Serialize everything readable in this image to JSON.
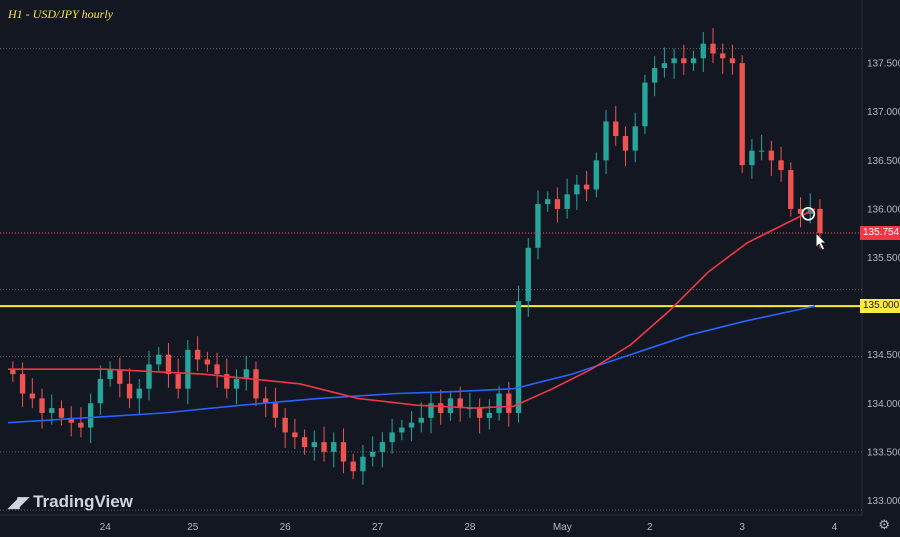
{
  "title": "H1 - USD/JPY hourly",
  "brand": "TradingView",
  "brand_logo": "TV-logo-icon",
  "settings_icon": "gear-icon",
  "colors": {
    "background": "#131722",
    "up": "#26a69a",
    "down": "#ef5350",
    "ma_red": "#f23645",
    "ma_blue": "#2962ff",
    "level": "#ffeb3b",
    "current": "#f23645"
  },
  "chart_data": {
    "type": "candlestick",
    "title": "H1 - USD/JPY hourly",
    "ylim": [
      132.85,
      138.15
    ],
    "yticks": [
      133.0,
      133.5,
      134.0,
      134.5,
      135.0,
      135.5,
      136.0,
      136.5,
      137.0,
      137.5
    ],
    "ytick_labels": [
      "133.000",
      "133.500",
      "134.000",
      "134.500",
      "135.000",
      "135.500",
      "136.000",
      "136.500",
      "137.000",
      "137.500"
    ],
    "xlim": [
      0,
      87
    ],
    "xticks": [
      10,
      19,
      28.5,
      38,
      47.5,
      57,
      66,
      75.5,
      85
    ],
    "xtick_labels": [
      "24",
      "25",
      "26",
      "27",
      "28",
      "May",
      "2",
      "3",
      "4"
    ],
    "horizontal_level": {
      "value": 135.0,
      "label": "135.000"
    },
    "current_price": {
      "value": 135.754,
      "label": "135.754"
    },
    "dotted_levels": [
      137.65,
      135.75,
      135.17,
      134.48,
      133.5,
      132.9
    ],
    "close": [
      134.3,
      134.1,
      134.05,
      133.9,
      133.95,
      133.85,
      133.8,
      133.75,
      134.0,
      134.25,
      134.35,
      134.2,
      134.05,
      134.15,
      134.4,
      134.5,
      134.3,
      134.15,
      134.55,
      134.45,
      134.4,
      134.3,
      134.15,
      134.25,
      134.35,
      134.05,
      134.0,
      133.85,
      133.7,
      133.65,
      133.55,
      133.6,
      133.5,
      133.6,
      133.4,
      133.3,
      133.45,
      133.5,
      133.6,
      133.7,
      133.75,
      133.8,
      133.85,
      134.0,
      133.9,
      134.05,
      133.95,
      133.95,
      133.85,
      133.9,
      134.1,
      133.9,
      135.05,
      135.6,
      136.05,
      136.1,
      136.0,
      136.15,
      136.25,
      136.2,
      136.5,
      136.9,
      136.75,
      136.6,
      136.85,
      137.3,
      137.45,
      137.5,
      137.55,
      137.5,
      137.55,
      137.7,
      137.6,
      137.55,
      137.5,
      136.45,
      136.6,
      136.6,
      136.5,
      136.4,
      136.0,
      135.95,
      136.0,
      135.75
    ],
    "ma_red": [
      [
        0,
        134.35
      ],
      [
        10,
        134.35
      ],
      [
        20,
        134.3
      ],
      [
        30,
        134.2
      ],
      [
        36,
        134.05
      ],
      [
        42,
        133.98
      ],
      [
        48,
        133.95
      ],
      [
        52,
        133.97
      ],
      [
        56,
        134.15
      ],
      [
        60,
        134.35
      ],
      [
        64,
        134.6
      ],
      [
        68,
        134.95
      ],
      [
        72,
        135.35
      ],
      [
        76,
        135.65
      ],
      [
        80,
        135.85
      ],
      [
        83,
        136.0
      ]
    ],
    "ma_blue": [
      [
        0,
        133.8
      ],
      [
        8,
        133.85
      ],
      [
        16,
        133.9
      ],
      [
        24,
        133.98
      ],
      [
        32,
        134.05
      ],
      [
        40,
        134.1
      ],
      [
        46,
        134.12
      ],
      [
        52,
        134.15
      ],
      [
        58,
        134.3
      ],
      [
        64,
        134.5
      ],
      [
        70,
        134.7
      ],
      [
        76,
        134.85
      ],
      [
        83,
        135.0
      ]
    ]
  }
}
